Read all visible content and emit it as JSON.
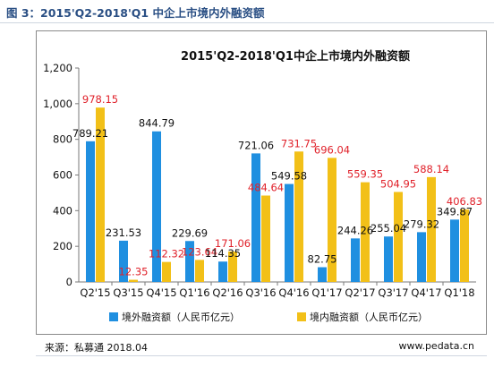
{
  "figure": {
    "caption": "图 3：2015'Q2-2018'Q1 中企上市境内外融资额"
  },
  "chart_data": {
    "type": "bar",
    "title": "2015'Q2-2018'Q1中企上市境内外融资额",
    "xlabel": "",
    "ylabel": "",
    "ylim": [
      0,
      1200
    ],
    "yticks": [
      "0",
      "200",
      "400",
      "600",
      "800",
      "1,000",
      "1,200"
    ],
    "categories": [
      "Q2'15",
      "Q3'15",
      "Q4'15",
      "Q1'16",
      "Q2'16",
      "Q3'16",
      "Q4'16",
      "Q1'17",
      "Q2'17",
      "Q3'17",
      "Q4'17",
      "Q1'18"
    ],
    "series": [
      {
        "name": "境外融资额（人民币亿元）",
        "color": "#1f8fe0",
        "label_color": "#111111",
        "values": [
          789.21,
          231.53,
          844.79,
          229.69,
          114.35,
          721.06,
          549.58,
          82.75,
          244.26,
          255.04,
          279.32,
          349.87
        ],
        "labels": [
          "789.21",
          "231.53",
          "844.79",
          "229.69",
          "114.35",
          "721.06",
          "549.58",
          "82.75",
          "244.26",
          "255.04",
          "279.32",
          "349.87"
        ]
      },
      {
        "name": "境内融资额（人民币亿元）",
        "color": "#f2c018",
        "label_color": "#e0212a",
        "values": [
          978.15,
          12.35,
          112.32,
          123.64,
          171.06,
          484.64,
          731.75,
          696.04,
          559.35,
          504.95,
          588.14,
          406.83
        ],
        "labels": [
          "978.15",
          "12.35",
          "112.32",
          "123.64",
          "171.06",
          "484.64",
          "731.75",
          "696.04",
          "559.35",
          "504.95",
          "588.14",
          "406.83"
        ]
      }
    ],
    "grid": false,
    "legend_position": "bottom"
  },
  "footer": {
    "source": "来源：私募通  2018.04",
    "site": "www.pedata.cn"
  }
}
